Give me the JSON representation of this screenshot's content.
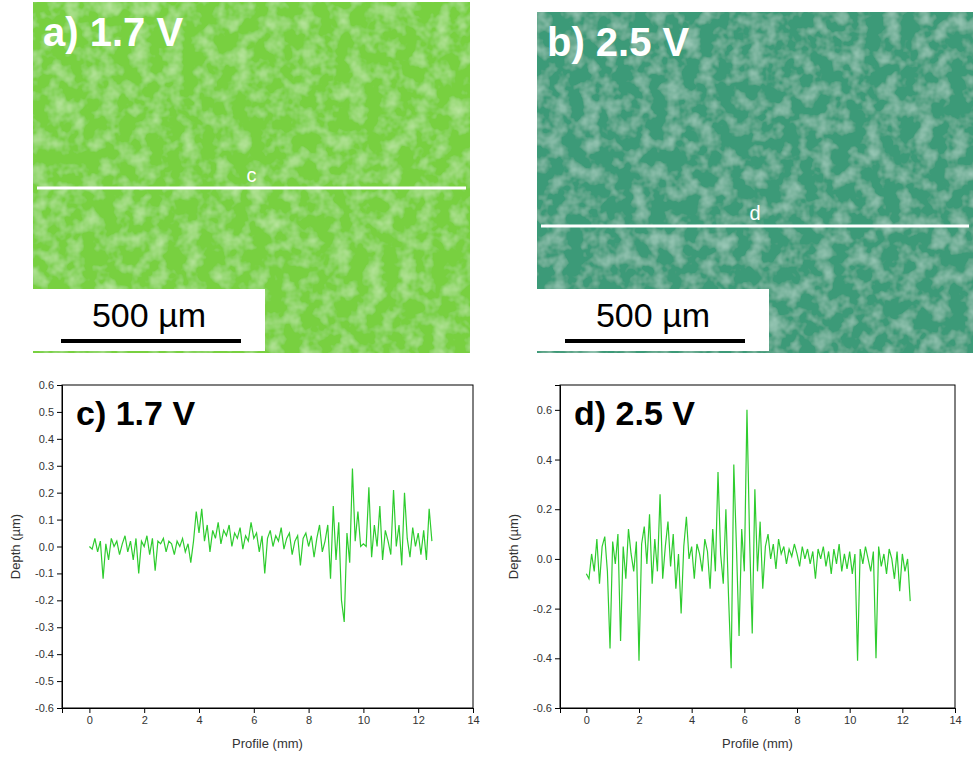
{
  "images": [
    {
      "label": "a) 1.7 V",
      "line_label": "c",
      "scale_bar": "500 µm",
      "color": "#78d040"
    },
    {
      "label": "b) 2.5 V",
      "line_label": "d",
      "scale_bar": "500 µm",
      "color": "#3c9a78"
    }
  ],
  "chart_data": [
    {
      "type": "line",
      "title": "c) 1.7 V",
      "x_label": "Profile (mm)",
      "y_label": "Depth (µm)",
      "x": [
        0.0,
        0.1,
        0.2,
        0.3,
        0.4,
        0.5,
        0.6,
        0.7,
        0.8,
        0.9,
        1.0,
        1.1,
        1.2,
        1.3,
        1.4,
        1.5,
        1.6,
        1.7,
        1.8,
        1.9,
        2.0,
        2.1,
        2.2,
        2.3,
        2.4,
        2.5,
        2.6,
        2.7,
        2.8,
        2.9,
        3.0,
        3.1,
        3.2,
        3.3,
        3.4,
        3.5,
        3.6,
        3.7,
        3.8,
        3.9,
        4.0,
        4.1,
        4.2,
        4.3,
        4.4,
        4.5,
        4.6,
        4.7,
        4.8,
        4.9,
        5.0,
        5.1,
        5.2,
        5.3,
        5.4,
        5.5,
        5.6,
        5.7,
        5.8,
        5.9,
        6.0,
        6.1,
        6.2,
        6.3,
        6.4,
        6.5,
        6.6,
        6.7,
        6.8,
        6.9,
        7.0,
        7.1,
        7.2,
        7.3,
        7.4,
        7.5,
        7.6,
        7.7,
        7.8,
        7.9,
        8.0,
        8.1,
        8.2,
        8.3,
        8.4,
        8.5,
        8.6,
        8.7,
        8.8,
        8.9,
        9.0,
        9.1,
        9.2,
        9.3,
        9.4,
        9.5,
        9.6,
        9.7,
        9.8,
        9.9,
        10.0,
        10.1,
        10.2,
        10.3,
        10.4,
        10.5,
        10.6,
        10.7,
        10.8,
        10.9,
        11.0,
        11.1,
        11.2,
        11.3,
        11.4,
        11.5,
        11.6,
        11.7,
        11.8,
        11.9,
        12.0,
        12.1,
        12.2,
        12.3,
        12.4,
        12.5
      ],
      "series": [
        {
          "color": "#2ecc2e",
          "values": [
            0.0,
            -0.01,
            0.03,
            -0.02,
            0.02,
            -0.12,
            0.01,
            -0.05,
            0.03,
            0.0,
            0.02,
            -0.03,
            0.01,
            0.04,
            -0.02,
            0.02,
            -0.05,
            0.03,
            -0.1,
            0.02,
            0.0,
            0.04,
            -0.03,
            0.03,
            -0.09,
            0.02,
            0.01,
            0.03,
            -0.02,
            0.02,
            0.01,
            -0.03,
            0.02,
            0.0,
            0.03,
            -0.02,
            0.01,
            -0.06,
            0.02,
            0.13,
            0.05,
            0.14,
            0.02,
            0.08,
            -0.02,
            0.06,
            0.03,
            0.09,
            0.01,
            0.06,
            0.04,
            0.08,
            0.0,
            0.05,
            0.03,
            0.07,
            -0.01,
            0.04,
            0.02,
            0.09,
            0.03,
            0.05,
            -0.02,
            0.04,
            -0.1,
            0.03,
            0.06,
            0.0,
            0.04,
            0.02,
            0.07,
            -0.01,
            0.03,
            0.05,
            -0.03,
            0.02,
            0.04,
            -0.07,
            0.03,
            0.05,
            0.0,
            0.04,
            -0.04,
            0.03,
            0.08,
            -0.02,
            0.02,
            0.08,
            -0.12,
            0.15,
            -0.05,
            0.09,
            -0.2,
            -0.28,
            0.05,
            -0.06,
            0.29,
            0.02,
            0.13,
            0.0,
            0.01,
            0.0,
            0.22,
            -0.04,
            0.08,
            0.0,
            0.15,
            -0.05,
            0.06,
            0.02,
            -0.03,
            0.21,
            0.0,
            0.08,
            -0.07,
            0.2,
            0.03,
            -0.04,
            0.07,
            0.0,
            0.05,
            -0.03,
            0.06,
            -0.05,
            0.14,
            0.02
          ]
        }
      ],
      "xlim": [
        -1,
        14
      ],
      "xticks": [
        0,
        2,
        4,
        6,
        8,
        10,
        12,
        14
      ],
      "ylim": [
        -0.6,
        0.6
      ],
      "yticks": [
        -0.6,
        -0.5,
        -0.4,
        -0.3,
        -0.2,
        -0.1,
        {
          "value": 0,
          "label": "0.0"
        },
        0.1,
        0.2,
        0.3,
        0.4,
        0.5,
        0.6
      ]
    },
    {
      "type": "line",
      "title": "d) 2.5 V",
      "x_label": "Profile (mm)",
      "y_label": "Depth (µm)",
      "x": [
        0.0,
        0.1,
        0.2,
        0.3,
        0.4,
        0.5,
        0.6,
        0.7,
        0.8,
        0.9,
        1.0,
        1.1,
        1.2,
        1.3,
        1.4,
        1.5,
        1.6,
        1.7,
        1.8,
        1.9,
        2.0,
        2.1,
        2.2,
        2.3,
        2.4,
        2.5,
        2.6,
        2.7,
        2.8,
        2.9,
        3.0,
        3.1,
        3.2,
        3.3,
        3.4,
        3.5,
        3.6,
        3.7,
        3.8,
        3.9,
        4.0,
        4.1,
        4.2,
        4.3,
        4.4,
        4.5,
        4.6,
        4.7,
        4.8,
        4.9,
        5.0,
        5.1,
        5.2,
        5.3,
        5.4,
        5.5,
        5.6,
        5.7,
        5.8,
        5.9,
        6.0,
        6.1,
        6.2,
        6.3,
        6.4,
        6.5,
        6.6,
        6.7,
        6.8,
        6.9,
        7.0,
        7.1,
        7.2,
        7.3,
        7.4,
        7.5,
        7.6,
        7.7,
        7.8,
        7.9,
        8.0,
        8.1,
        8.2,
        8.3,
        8.4,
        8.5,
        8.6,
        8.7,
        8.8,
        8.9,
        9.0,
        9.1,
        9.2,
        9.3,
        9.4,
        9.5,
        9.6,
        9.7,
        9.8,
        9.9,
        10.0,
        10.1,
        10.2,
        10.3,
        10.4,
        10.5,
        10.6,
        10.7,
        10.8,
        10.9,
        11.0,
        11.1,
        11.2,
        11.3,
        11.4,
        11.5,
        11.6,
        11.7,
        11.8,
        11.9,
        12.0,
        12.1,
        12.2,
        12.3
      ],
      "series": [
        {
          "color": "#2ecc2e",
          "values": [
            -0.06,
            -0.08,
            0.02,
            -0.05,
            0.08,
            -0.1,
            0.05,
            0.09,
            -0.05,
            -0.36,
            0.07,
            -0.02,
            0.1,
            -0.33,
            0.05,
            -0.08,
            0.12,
            0.02,
            -0.05,
            0.07,
            -0.41,
            0.06,
            0.13,
            -0.02,
            0.18,
            -0.1,
            0.08,
            -0.05,
            0.26,
            -0.08,
            0.05,
            0.15,
            -0.03,
            0.1,
            -0.12,
            0.02,
            -0.22,
            0.05,
            0.17,
            0.0,
            0.05,
            -0.08,
            0.06,
            0.02,
            -0.05,
            0.08,
            0.03,
            -0.12,
            0.12,
            -0.05,
            0.35,
            0.02,
            -0.1,
            0.2,
            -0.15,
            -0.44,
            0.38,
            0.05,
            -0.31,
            0.12,
            -0.05,
            0.6,
            0.08,
            -0.3,
            0.28,
            -0.05,
            0.15,
            -0.12,
            0.05,
            0.1,
            0.0,
            0.06,
            -0.04,
            0.08,
            0.02,
            0.05,
            -0.02,
            0.04,
            0.01,
            0.06,
            0.02,
            -0.03,
            0.05,
            0.0,
            0.04,
            -0.02,
            0.03,
            -0.08,
            0.04,
            0.0,
            0.05,
            -0.03,
            0.03,
            -0.06,
            0.04,
            -0.02,
            0.06,
            -0.05,
            0.02,
            -0.04,
            0.03,
            -0.06,
            0.02,
            -0.41,
            0.04,
            -0.02,
            0.05,
            0.0,
            -0.05,
            0.03,
            -0.4,
            0.05,
            -0.03,
            0.02,
            -0.06,
            0.04,
            0.0,
            -0.08,
            0.03,
            -0.13,
            0.02,
            -0.05,
            0.0,
            -0.17
          ]
        }
      ],
      "xlim": [
        -1,
        14
      ],
      "xticks": [
        0,
        2,
        4,
        6,
        8,
        10,
        12,
        14
      ],
      "ylim": [
        -0.6,
        0.7
      ],
      "yticks": [
        -0.6,
        -0.4,
        -0.2,
        {
          "value": 0,
          "label": "0.0"
        },
        0.2,
        0.4,
        0.6
      ]
    }
  ]
}
